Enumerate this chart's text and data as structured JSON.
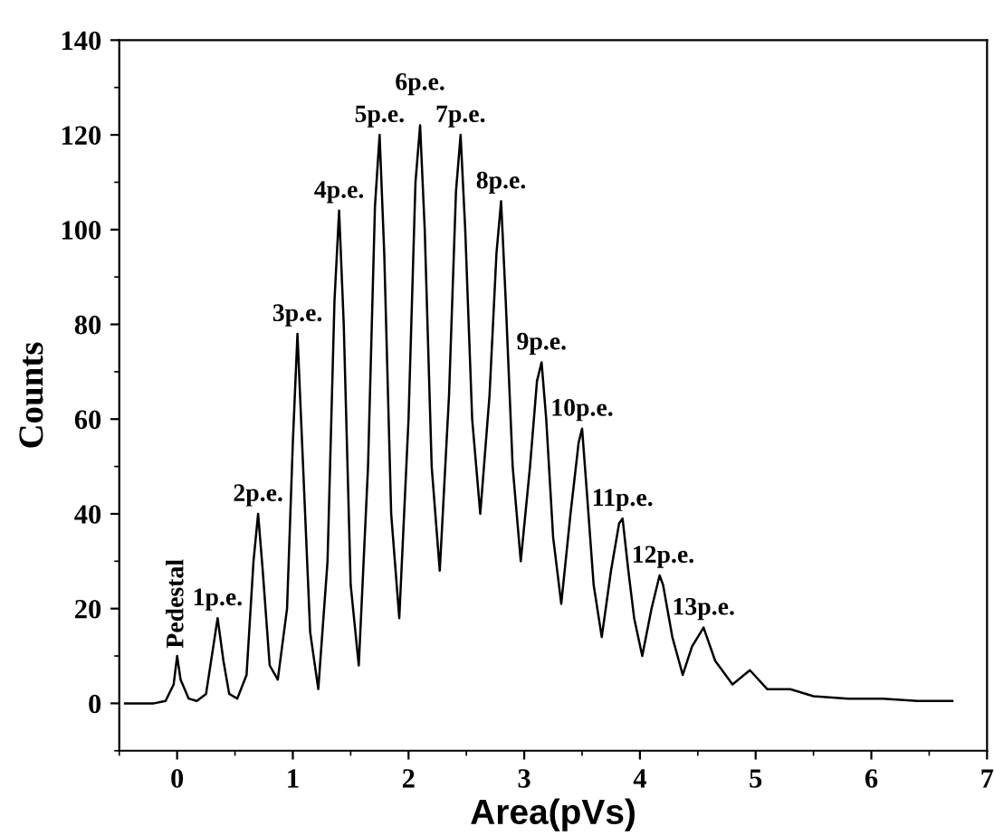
{
  "chart_data": {
    "type": "line",
    "xlabel": "Area(pVs)",
    "ylabel": "Counts",
    "xlim": [
      -0.5,
      7
    ],
    "ylim": [
      -10,
      140
    ],
    "xticks": [
      0,
      1,
      2,
      3,
      4,
      5,
      6,
      7
    ],
    "yticks": [
      0,
      20,
      40,
      60,
      80,
      100,
      120,
      140
    ],
    "grid": false,
    "legend": false,
    "marker": "none",
    "line_style": "solid",
    "series": [
      {
        "color": "#000000",
        "x": [
          -0.45,
          -0.2,
          -0.1,
          -0.03,
          0.0,
          0.03,
          0.1,
          0.17,
          0.25,
          0.3,
          0.35,
          0.4,
          0.45,
          0.52,
          0.6,
          0.66,
          0.7,
          0.74,
          0.8,
          0.87,
          0.95,
          1.0,
          1.04,
          1.08,
          1.15,
          1.22,
          1.3,
          1.36,
          1.4,
          1.44,
          1.5,
          1.57,
          1.65,
          1.71,
          1.75,
          1.79,
          1.85,
          1.92,
          2.0,
          2.06,
          2.1,
          2.14,
          2.2,
          2.27,
          2.35,
          2.41,
          2.45,
          2.49,
          2.55,
          2.62,
          2.7,
          2.76,
          2.8,
          2.84,
          2.9,
          2.97,
          3.05,
          3.11,
          3.15,
          3.19,
          3.25,
          3.32,
          3.4,
          3.47,
          3.5,
          3.54,
          3.6,
          3.67,
          3.75,
          3.82,
          3.85,
          3.9,
          3.95,
          4.02,
          4.1,
          4.17,
          4.2,
          4.28,
          4.37,
          4.45,
          4.55,
          4.65,
          4.8,
          4.95,
          5.1,
          5.3,
          5.5,
          5.8,
          6.1,
          6.4,
          6.7
        ],
        "values": [
          0,
          0,
          0.5,
          4,
          10,
          5,
          1,
          0.5,
          2,
          10,
          18,
          9,
          2,
          1,
          6,
          30,
          40,
          28,
          8,
          5,
          20,
          55,
          78,
          55,
          15,
          3,
          30,
          85,
          104,
          80,
          25,
          8,
          50,
          105,
          120,
          95,
          40,
          18,
          60,
          110,
          122,
          100,
          50,
          28,
          65,
          108,
          120,
          100,
          60,
          40,
          65,
          95,
          106,
          85,
          50,
          30,
          50,
          68,
          72,
          60,
          35,
          21,
          40,
          55,
          58,
          45,
          25,
          14,
          28,
          38,
          39,
          28,
          18,
          10,
          20,
          27,
          25,
          14,
          6,
          12,
          16,
          9,
          4,
          7,
          3,
          3,
          1.5,
          1,
          1,
          0.5,
          0.5
        ]
      }
    ],
    "annotations": [
      {
        "text": "Pedestal",
        "x": 0.0,
        "y": 10
      },
      {
        "text": "1p.e.",
        "x": 0.35,
        "y": 18
      },
      {
        "text": "2p.e.",
        "x": 0.7,
        "y": 40
      },
      {
        "text": "3p.e.",
        "x": 1.04,
        "y": 78
      },
      {
        "text": "4p.e.",
        "x": 1.4,
        "y": 104
      },
      {
        "text": "5p.e.",
        "x": 1.75,
        "y": 120
      },
      {
        "text": "6p.e.",
        "x": 2.1,
        "y": 122
      },
      {
        "text": "7p.e.",
        "x": 2.45,
        "y": 120
      },
      {
        "text": "8p.e.",
        "x": 2.8,
        "y": 106
      },
      {
        "text": "9p.e.",
        "x": 3.15,
        "y": 72
      },
      {
        "text": "10p.e.",
        "x": 3.5,
        "y": 58
      },
      {
        "text": "11p.e.",
        "x": 3.85,
        "y": 39
      },
      {
        "text": "12p.e.",
        "x": 4.2,
        "y": 27
      },
      {
        "text": "13p.e.",
        "x": 4.55,
        "y": 16
      }
    ]
  }
}
